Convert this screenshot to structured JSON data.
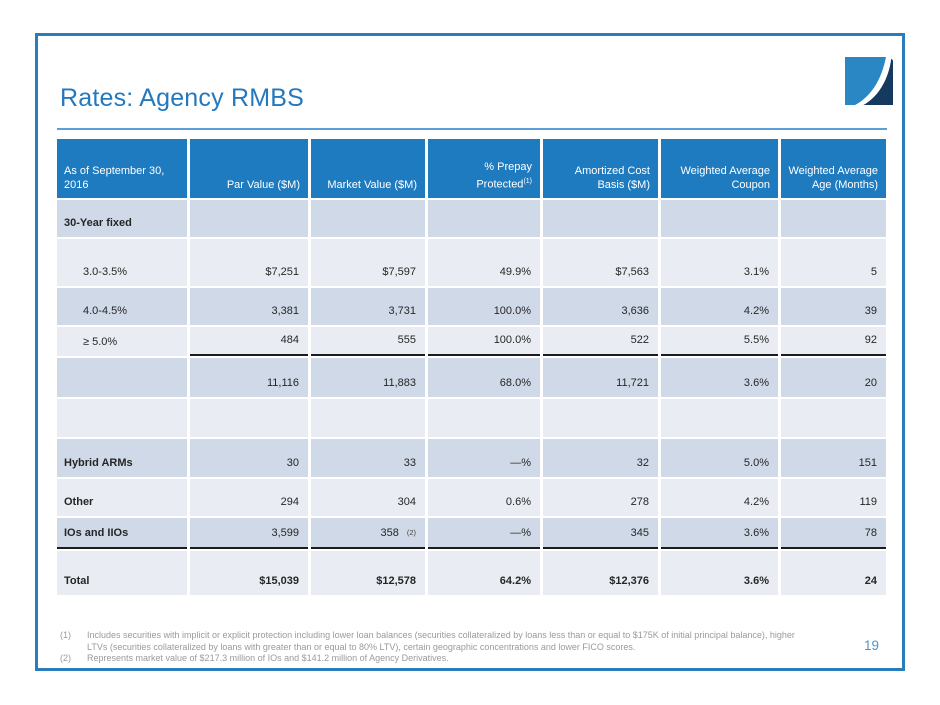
{
  "title": "Rates: Agency RMBS",
  "page": {
    "number": "19"
  },
  "colors": {
    "header_bg": "#1F7BBF",
    "row_dark": "#CFD9E8",
    "row_light": "#E9EDF3",
    "title_blue": "#2478BE",
    "border_blue": "#2B7CBA",
    "title_rule_blue": "#5AA0D6",
    "subtotal_rule_dark": "#1C1C1C",
    "footnote_gray": "#9A9A9A",
    "page_number_blue": "#4E94CE",
    "logo_light_blue": "#2A87C3",
    "logo_navy": "#16395F"
  },
  "logo": {
    "name": "two-tone-swoosh-logo"
  },
  "table": {
    "headers": [
      {
        "text": "As of September 30, 2016",
        "align": "left"
      },
      {
        "text": "Par Value ($M)"
      },
      {
        "text": "Market Value ($M)"
      },
      {
        "text": "% Prepay Protected",
        "sup": "(1)"
      },
      {
        "text": "Amortized Cost Basis ($M)"
      },
      {
        "text": "Weighted Average Coupon"
      },
      {
        "text": "Weighted Average Age (Months)"
      }
    ],
    "rows": [
      {
        "label": "30-Year fixed",
        "label_bold": true,
        "values": [
          "",
          "",
          "",
          "",
          "",
          ""
        ]
      },
      {
        "label": "3.0-3.5%",
        "indent": true,
        "values": [
          "$7,251",
          "$7,597",
          "49.9%",
          "$7,563",
          "3.1%",
          "5"
        ]
      },
      {
        "label": "4.0-4.5%",
        "indent": true,
        "values": [
          "3,381",
          "3,731",
          "100.0%",
          "3,636",
          "4.2%",
          "39"
        ]
      },
      {
        "label": "≥ 5.0%",
        "indent": true,
        "values": [
          "484",
          "555",
          "100.0%",
          "522",
          "5.5%",
          "92"
        ],
        "rule": "data"
      },
      {
        "label": "",
        "values": [
          "11,116",
          "11,883",
          "68.0%",
          "11,721",
          "3.6%",
          "20"
        ]
      },
      {
        "label": "",
        "values": [
          "",
          "",
          "",
          "",
          "",
          ""
        ]
      },
      {
        "label": "Hybrid ARMs",
        "label_bold": true,
        "values": [
          "30",
          "33",
          "—%",
          "32",
          "5.0%",
          "151"
        ]
      },
      {
        "label": "Other",
        "label_bold": true,
        "values": [
          "294",
          "304",
          "0.6%",
          "278",
          "4.2%",
          "119"
        ]
      },
      {
        "label": "IOs and IIOs",
        "label_bold": true,
        "values": [
          "3,599",
          "358",
          "—%",
          "345",
          "3.6%",
          "78"
        ],
        "value_sups": {
          "1": "(2)"
        },
        "rule": "all"
      },
      {
        "label": "Total",
        "label_bold": true,
        "values": [
          "$15,039",
          "$12,578",
          "64.2%",
          "$12,376",
          "3.6%",
          "24"
        ],
        "values_bold": true
      }
    ]
  },
  "footnotes": [
    {
      "marker": "(1)",
      "text": "Includes securities with implicit or explicit protection including lower loan balances (securities collateralized by loans less than or equal to $175K of initial principal balance), higher LTVs (securities collateralized by loans with greater than or equal to 80% LTV), certain geographic concentrations and lower FICO scores."
    },
    {
      "marker": "(2)",
      "text": "Represents market value of $217.3 million of IOs and $141.2 million of Agency Derivatives."
    }
  ]
}
